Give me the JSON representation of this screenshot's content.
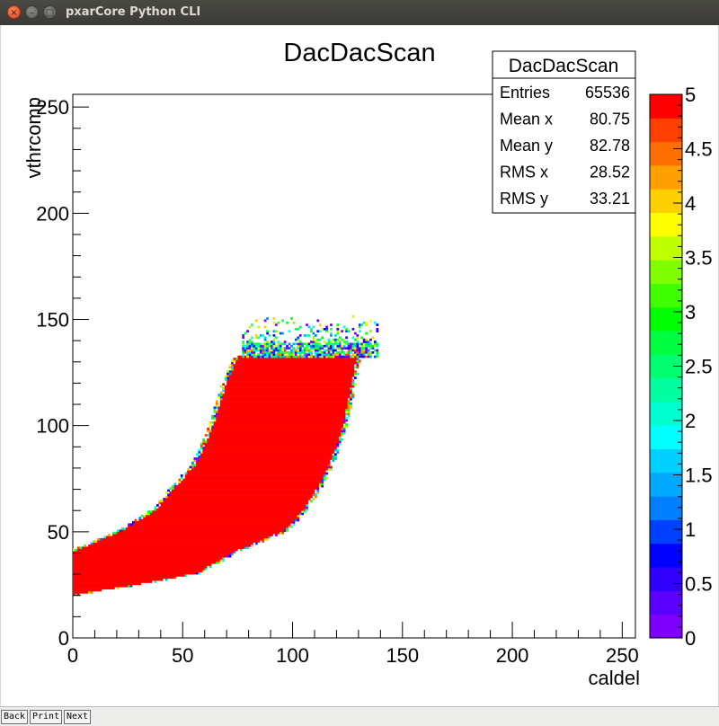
{
  "window": {
    "title": "pxarCore Python CLI",
    "close_glyph": "×",
    "minimize_glyph": "–",
    "maximize_glyph": "□"
  },
  "navigation": {
    "back_label": "Back",
    "print_label": "Print",
    "next_label": "Next"
  },
  "chart_data": {
    "type": "heatmap",
    "title": "DacDacScan",
    "xlabel": "caldel",
    "ylabel": "vthrcomp",
    "xlim": [
      0,
      256
    ],
    "ylim": [
      0,
      256
    ],
    "x_ticks": [
      "0",
      "50",
      "100",
      "150",
      "200",
      "250"
    ],
    "y_ticks": [
      "0",
      "50",
      "100",
      "150",
      "200",
      "250"
    ],
    "z_range": [
      0,
      5
    ],
    "z_ticks": [
      "0",
      "0.5",
      "1",
      "1.5",
      "2",
      "2.5",
      "3",
      "3.5",
      "4",
      "4.5",
      "5"
    ],
    "palette": [
      "#7f00ff",
      "#5a00ff",
      "#3000ff",
      "#0000ff",
      "#0040ff",
      "#0080ff",
      "#00a8ff",
      "#00d0ff",
      "#00ffff",
      "#00ffd0",
      "#00ffa0",
      "#00ff70",
      "#00ff40",
      "#00ff00",
      "#40ff00",
      "#80ff00",
      "#c0ff00",
      "#ffff00",
      "#ffd000",
      "#ffa000",
      "#ff7000",
      "#ff4000",
      "#ff0000"
    ],
    "saturated_color": "#ff0000",
    "region_description_rows": [
      {
        "y": 20,
        "x_min": 0,
        "x_max": 0
      },
      {
        "y": 22,
        "x_min": 0,
        "x_max": 12
      },
      {
        "y": 25,
        "x_min": 0,
        "x_max": 30
      },
      {
        "y": 30,
        "x_min": 0,
        "x_max": 55
      },
      {
        "y": 35,
        "x_min": 0,
        "x_max": 64
      },
      {
        "y": 40,
        "x_min": 0,
        "x_max": 72
      },
      {
        "y": 50,
        "x_min": 22,
        "x_max": 95
      },
      {
        "y": 60,
        "x_min": 38,
        "x_max": 104
      },
      {
        "y": 70,
        "x_min": 46,
        "x_max": 110
      },
      {
        "y": 80,
        "x_min": 55,
        "x_max": 115
      },
      {
        "y": 90,
        "x_min": 60,
        "x_max": 119
      },
      {
        "y": 100,
        "x_min": 64,
        "x_max": 122
      },
      {
        "y": 110,
        "x_min": 67,
        "x_max": 124
      },
      {
        "y": 120,
        "x_min": 70,
        "x_max": 126
      },
      {
        "y": 132,
        "x_min": 75,
        "x_max": 128
      }
    ],
    "noisy_band": {
      "y_min": 132,
      "y_max": 152,
      "x_min": 77,
      "x_max": 138
    },
    "stats_box": {
      "title": "DacDacScan",
      "rows": [
        {
          "label": "Entries",
          "value": "65536"
        },
        {
          "label": "Mean x",
          "value": "80.75"
        },
        {
          "label": "Mean y",
          "value": "82.78"
        },
        {
          "label": "RMS x",
          "value": "28.52"
        },
        {
          "label": "RMS y",
          "value": "33.21"
        }
      ]
    }
  }
}
